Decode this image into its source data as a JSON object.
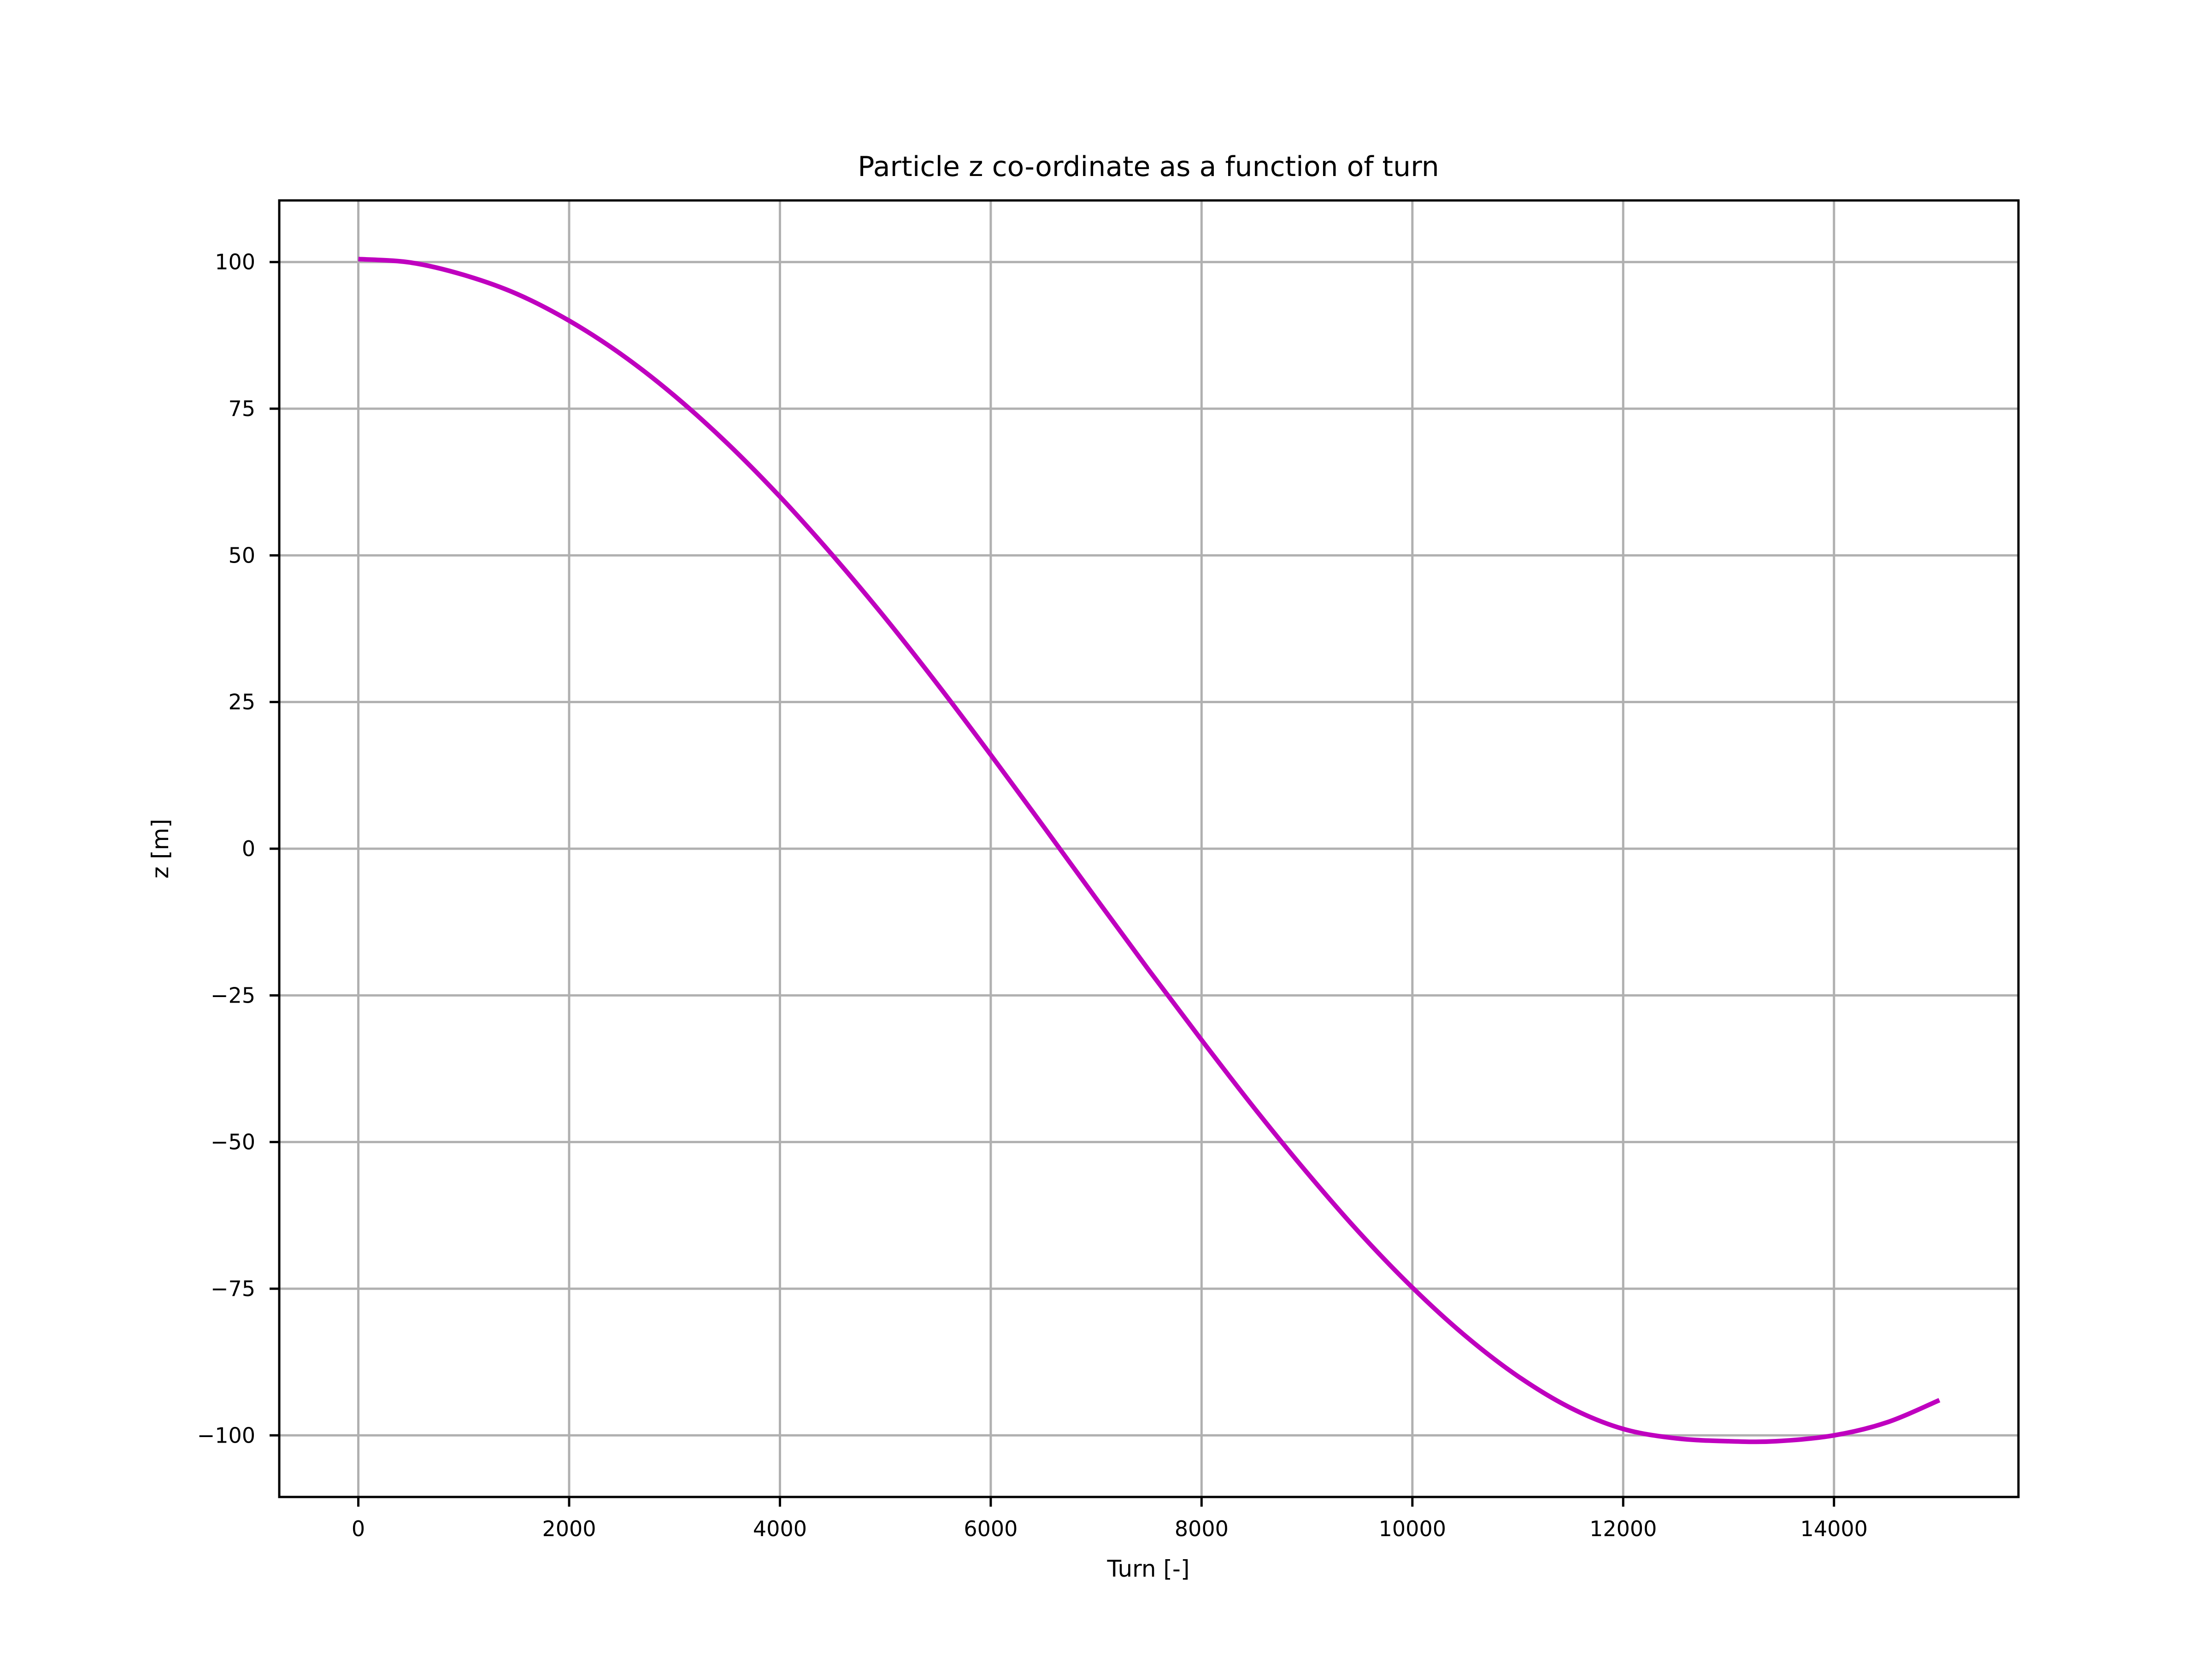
{
  "chart_data": {
    "type": "line",
    "title": "Particle z co-ordinate as a function of turn",
    "xlabel": "Turn [-]",
    "ylabel": "z [m]",
    "xlim": [
      -750,
      15750
    ],
    "ylim": [
      -110.5,
      110.5
    ],
    "grid": true,
    "x_ticks": [
      0,
      2000,
      4000,
      6000,
      8000,
      10000,
      12000,
      14000
    ],
    "y_ticks": [
      100,
      75,
      50,
      25,
      0,
      -25,
      -50,
      -75,
      -100
    ],
    "x_tick_labels": [
      "0",
      "2000",
      "4000",
      "6000",
      "8000",
      "10000",
      "12000",
      "14000"
    ],
    "y_tick_labels": [
      "100",
      "75",
      "50",
      "25",
      "0",
      "−25",
      "−50",
      "−75",
      "−100"
    ],
    "series": [
      {
        "color": "#bf00bf",
        "x": [
          0,
          500,
          1000,
          1500,
          2000,
          2500,
          3000,
          3500,
          4000,
          4500,
          5000,
          5500,
          6000,
          6500,
          7000,
          7500,
          8000,
          8500,
          9000,
          9500,
          10000,
          10500,
          11000,
          11500,
          12000,
          12500,
          13000,
          13450,
          14000,
          14500,
          15000
        ],
        "y": [
          100.5,
          99.9,
          97.8,
          94.6,
          90.0,
          84.2,
          77.2,
          69.1,
          60.0,
          50.0,
          39.3,
          27.9,
          16.0,
          3.8,
          -8.5,
          -20.7,
          -32.6,
          -44.2,
          -55.2,
          -65.5,
          -74.8,
          -83.0,
          -89.9,
          -95.3,
          -98.9,
          -100.5,
          -101.0,
          -101.0,
          -100.0,
          -97.8,
          -94.0
        ]
      }
    ]
  }
}
